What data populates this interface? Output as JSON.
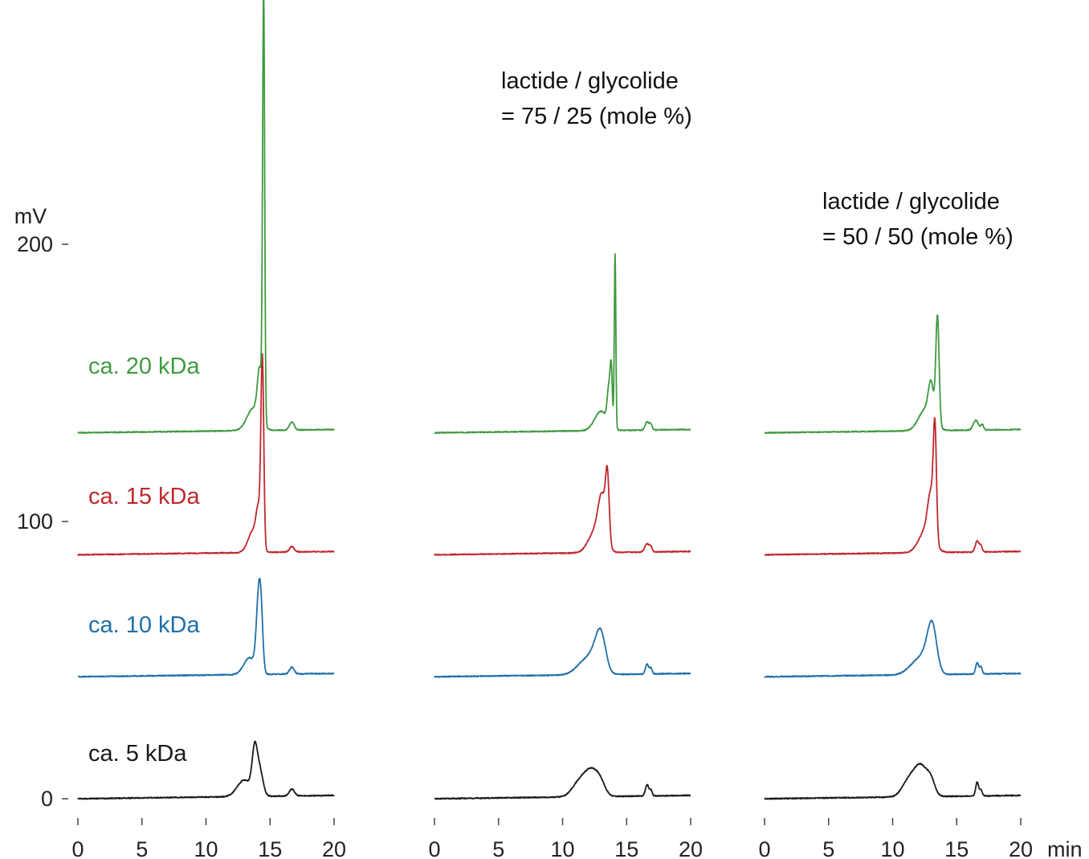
{
  "chart_data": {
    "type": "line",
    "ylabel": "mV",
    "yticks": [
      0,
      100,
      200
    ],
    "x_unit": "min",
    "xticks": [
      0,
      5,
      10,
      15,
      20
    ],
    "xlim": [
      0,
      20
    ],
    "colors": {
      "ca. 5 kDa": "#1a1a1a",
      "ca. 10 kDa": "#1f6fa8",
      "ca. 15 kDa": "#c0282d",
      "ca. 20 kDa": "#3f9a3f"
    },
    "series_labels": [
      {
        "name": "ca. 20 kDa",
        "color": "#3f9a3f"
      },
      {
        "name": "ca. 15 kDa",
        "color": "#c0282d"
      },
      {
        "name": "ca. 10 kDa",
        "color": "#1f6fa8"
      },
      {
        "name": "ca. 5 kDa",
        "color": "#1a1a1a"
      }
    ],
    "panels": [
      {
        "annotation": [],
        "traces": [
          {
            "series": "ca. 5 kDa",
            "baseline": 0,
            "components": [
              [
                13.0,
                0.55,
                6
              ],
              [
                13.8,
                0.2,
                15
              ],
              [
                14.2,
                0.25,
                9
              ],
              [
                16.7,
                0.2,
                2.5
              ]
            ]
          },
          {
            "series": "ca. 10 kDa",
            "baseline": 44,
            "components": [
              [
                13.4,
                0.45,
                6
              ],
              [
                14.1,
                0.18,
                24
              ],
              [
                14.3,
                0.15,
                16
              ],
              [
                16.7,
                0.18,
                2.5
              ]
            ]
          },
          {
            "series": "ca. 15 kDa",
            "baseline": 88,
            "components": [
              [
                13.7,
                0.4,
                8
              ],
              [
                14.4,
                0.11,
                67
              ],
              [
                14.1,
                0.18,
                12
              ],
              [
                16.7,
                0.18,
                2
              ]
            ]
          },
          {
            "series": "ca. 20 kDa",
            "baseline": 132,
            "components": [
              [
                13.7,
                0.5,
                8
              ],
              [
                14.5,
                0.08,
                153
              ],
              [
                14.2,
                0.18,
                18
              ],
              [
                16.7,
                0.18,
                3
              ]
            ]
          }
        ]
      },
      {
        "annotation": [
          "lactide / glycolide",
          "= 75 / 25 (mole %)"
        ],
        "traces": [
          {
            "series": "ca. 5 kDa",
            "baseline": 0,
            "components": [
              [
                11.3,
                0.55,
                5
              ],
              [
                12.3,
                0.55,
                9
              ],
              [
                13.0,
                0.35,
                3
              ],
              [
                16.6,
                0.13,
                4
              ],
              [
                16.9,
                0.1,
                2
              ]
            ]
          },
          {
            "series": "ca. 10 kDa",
            "baseline": 44,
            "components": [
              [
                11.8,
                0.7,
                5
              ],
              [
                13.0,
                0.38,
                13
              ],
              [
                12.5,
                0.45,
                4
              ],
              [
                16.6,
                0.13,
                3.5
              ],
              [
                16.9,
                0.1,
                2
              ]
            ]
          },
          {
            "series": "ca. 15 kDa",
            "baseline": 88,
            "components": [
              [
                12.6,
                0.55,
                8
              ],
              [
                13.5,
                0.14,
                22
              ],
              [
                13.1,
                0.3,
                16
              ],
              [
                16.6,
                0.18,
                3
              ],
              [
                16.9,
                0.1,
                1.5
              ]
            ]
          },
          {
            "series": "ca. 20 kDa",
            "baseline": 132,
            "components": [
              [
                13.0,
                0.5,
                7
              ],
              [
                14.1,
                0.06,
                63
              ],
              [
                13.8,
                0.09,
                20
              ],
              [
                13.6,
                0.12,
                12
              ],
              [
                16.6,
                0.15,
                3
              ],
              [
                16.9,
                0.1,
                2
              ]
            ]
          }
        ]
      },
      {
        "annotation": [
          "lactide / glycolide",
          "= 50 / 50 (mole %)"
        ],
        "traces": [
          {
            "series": "ca. 5 kDa",
            "baseline": 0,
            "components": [
              [
                11.2,
                0.5,
                5
              ],
              [
                12.2,
                0.55,
                11
              ],
              [
                13.0,
                0.3,
                4
              ],
              [
                16.6,
                0.12,
                5
              ],
              [
                16.9,
                0.1,
                2
              ]
            ]
          },
          {
            "series": "ca. 10 kDa",
            "baseline": 44,
            "components": [
              [
                12.0,
                0.7,
                5
              ],
              [
                13.1,
                0.35,
                15
              ],
              [
                12.7,
                0.45,
                4
              ],
              [
                16.6,
                0.12,
                4
              ],
              [
                16.9,
                0.1,
                2.5
              ]
            ]
          },
          {
            "series": "ca. 15 kDa",
            "baseline": 88,
            "components": [
              [
                12.6,
                0.55,
                8
              ],
              [
                13.3,
                0.12,
                37
              ],
              [
                13.0,
                0.25,
                16
              ],
              [
                16.6,
                0.15,
                4
              ],
              [
                16.9,
                0.1,
                2
              ]
            ]
          },
          {
            "series": "ca. 20 kDa",
            "baseline": 132,
            "components": [
              [
                12.6,
                0.55,
                8
              ],
              [
                13.5,
                0.13,
                39
              ],
              [
                13.0,
                0.2,
                12
              ],
              [
                16.5,
                0.2,
                3.5
              ],
              [
                17.0,
                0.1,
                2
              ]
            ]
          }
        ]
      }
    ]
  }
}
